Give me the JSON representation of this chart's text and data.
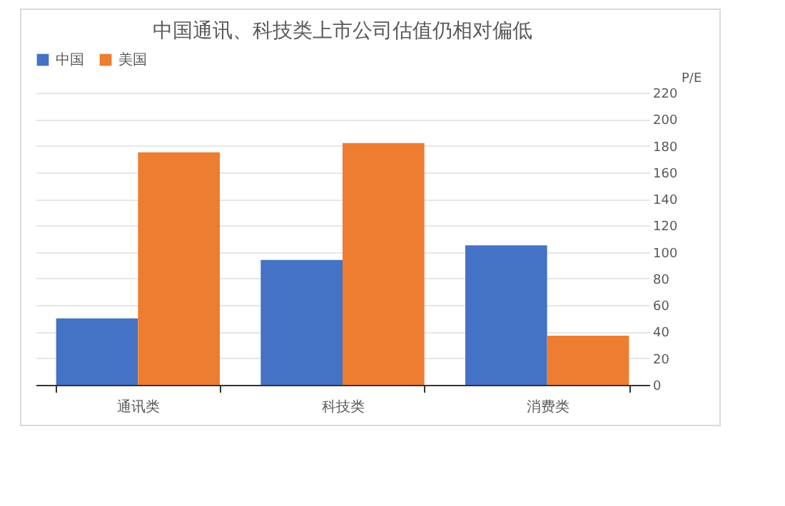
{
  "chart_data": {
    "type": "bar",
    "title": "中国通讯、科技类上市公司估值仍相对偏低",
    "ylabel": "P/E",
    "categories": [
      "通讯类",
      "科技类",
      "消费类"
    ],
    "series": [
      {
        "name": "中国",
        "color": "#4472c4",
        "values": [
          50,
          94,
          105
        ]
      },
      {
        "name": "美国",
        "color": "#ed7d31",
        "values": [
          175,
          182,
          37
        ]
      }
    ],
    "ylim": [
      0,
      220
    ],
    "yticks": [
      0,
      20,
      40,
      60,
      80,
      100,
      120,
      140,
      160,
      180,
      200,
      220
    ],
    "grid": "y",
    "legend": "top"
  }
}
